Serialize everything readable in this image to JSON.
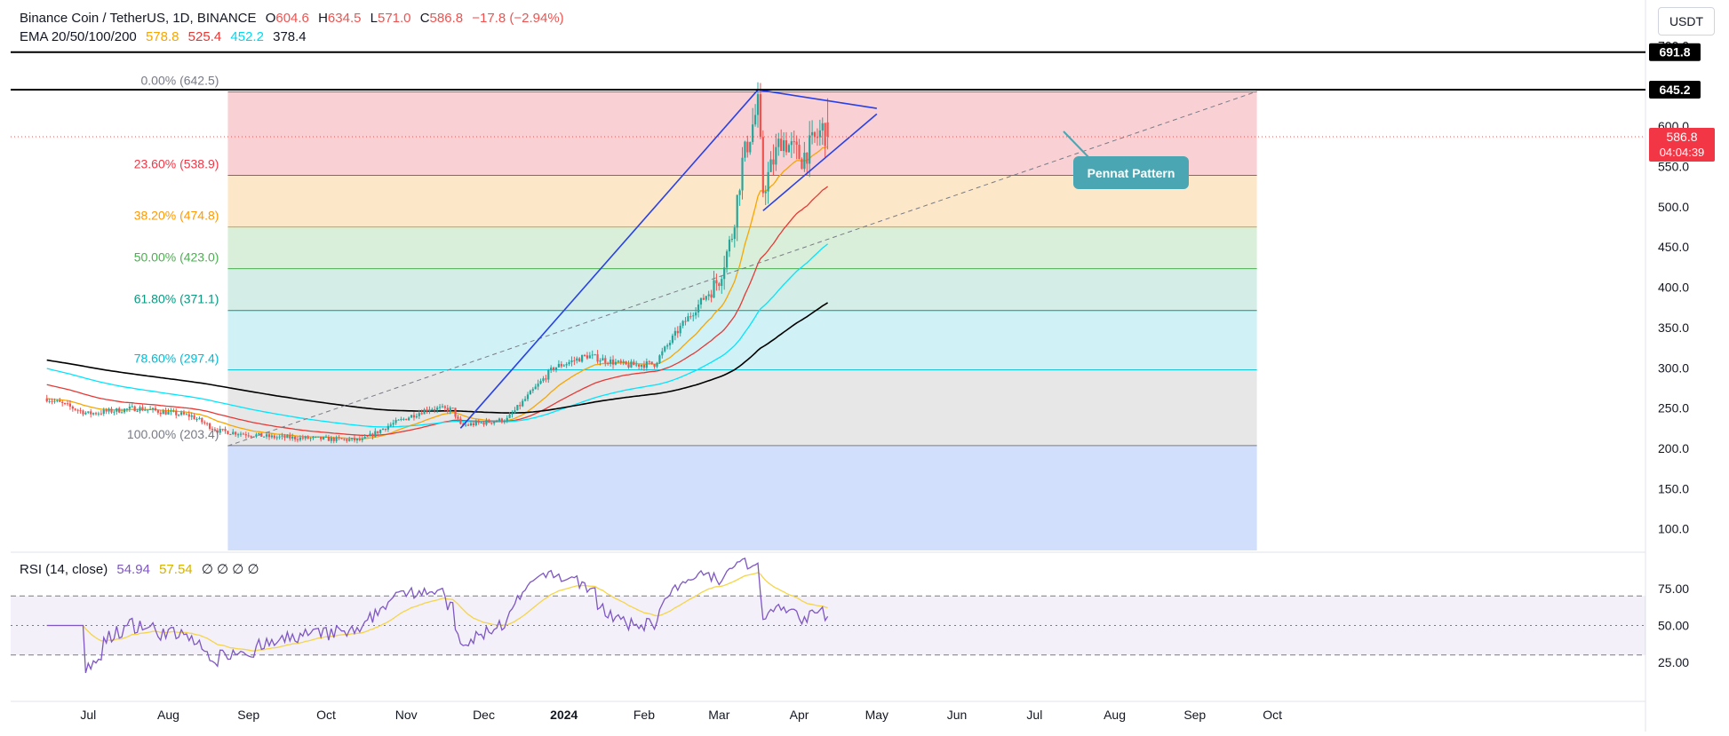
{
  "header": {
    "symbol": "Binance Coin / TetherUS, 1D, BINANCE",
    "o_label": "O",
    "o_value": "604.6",
    "h_label": "H",
    "h_value": "634.5",
    "l_label": "L",
    "l_value": "571.0",
    "c_label": "C",
    "c_value": "586.8",
    "change": "−17.8 (−2.94%)",
    "ema_label": "EMA 20/50/100/200",
    "ema_values": [
      "578.8",
      "525.4",
      "452.2",
      "378.4"
    ],
    "currency_button": "USDT"
  },
  "colors": {
    "up": "#26a69a",
    "down": "#ef5350",
    "ema20": "#f7a600",
    "ema50": "#e53935",
    "ema100": "#00e5ff",
    "ema200": "#000000",
    "rsi": "#7e57c2",
    "rsi_ma": "#f5d547",
    "trend": "#2740e8",
    "callout": "#4aa6b2"
  },
  "price_axis": {
    "ticks": [
      "700.0",
      "600.0",
      "550.0",
      "500.0",
      "450.0",
      "400.0",
      "350.0",
      "300.0",
      "250.0",
      "200.0",
      "150.0",
      "100.0"
    ]
  },
  "rsi_axis": {
    "ticks": [
      "75.00",
      "50.00",
      "25.00"
    ]
  },
  "time_axis": {
    "labels": [
      "Jul",
      "Aug",
      "Sep",
      "Oct",
      "Nov",
      "Dec",
      "2024",
      "Feb",
      "Mar",
      "Apr",
      "May",
      "Jun",
      "Jul",
      "Aug",
      "Sep",
      "Oct"
    ]
  },
  "price_badges": {
    "level1": "691.8",
    "level2": "645.2",
    "last": "586.8",
    "countdown": "04:04:39"
  },
  "fib_levels": [
    {
      "label": "0.00% (642.5)",
      "price": 642.5,
      "color": "#787b86"
    },
    {
      "label": "23.60% (538.9)",
      "price": 538.9,
      "color": "#f23645"
    },
    {
      "label": "38.20% (474.8)",
      "price": 474.8,
      "color": "#ff9800"
    },
    {
      "label": "50.00% (423.0)",
      "price": 423.0,
      "color": "#4caf50"
    },
    {
      "label": "61.80% (371.1)",
      "price": 371.1,
      "color": "#089981"
    },
    {
      "label": "78.60% (297.4)",
      "price": 297.4,
      "color": "#00bcd4"
    },
    {
      "label": "100.00% (203.4)",
      "price": 203.4,
      "color": "#787b86"
    }
  ],
  "callout": {
    "text": "Pennat Pattern"
  },
  "rsi": {
    "label": "RSI (14, close)",
    "value": "54.94",
    "ma_value": "57.54",
    "extras": "∅ ∅ ∅ ∅"
  },
  "chart_data": {
    "type": "candlestick",
    "ylim": [
      75,
      735
    ],
    "rsi_ylim": [
      10,
      92
    ],
    "horizontal_levels": [
      691.8,
      645.2
    ],
    "current_price": 586.8,
    "ohlc_anchors": [
      {
        "date": "2023-06-15",
        "close": 262
      },
      {
        "date": "2023-07-01",
        "close": 243
      },
      {
        "date": "2023-07-20",
        "close": 250
      },
      {
        "date": "2023-08-10",
        "close": 240
      },
      {
        "date": "2023-08-20",
        "close": 222
      },
      {
        "date": "2023-09-10",
        "close": 214
      },
      {
        "date": "2023-10-15",
        "close": 210
      },
      {
        "date": "2023-10-25",
        "close": 228
      },
      {
        "date": "2023-11-10",
        "close": 250
      },
      {
        "date": "2023-11-19",
        "close": 248
      },
      {
        "date": "2023-11-22",
        "close": 228
      },
      {
        "date": "2023-12-10",
        "close": 236
      },
      {
        "date": "2023-12-28",
        "close": 300
      },
      {
        "date": "2024-01-10",
        "close": 315
      },
      {
        "date": "2024-01-25",
        "close": 303
      },
      {
        "date": "2024-02-05",
        "close": 305
      },
      {
        "date": "2024-02-15",
        "close": 350
      },
      {
        "date": "2024-03-01",
        "close": 410
      },
      {
        "date": "2024-03-06",
        "close": 465
      },
      {
        "date": "2024-03-10",
        "close": 555
      },
      {
        "date": "2024-03-16",
        "close": 625
      },
      {
        "date": "2024-03-18",
        "close": 520
      },
      {
        "date": "2024-03-25",
        "close": 585
      },
      {
        "date": "2024-04-02",
        "close": 560
      },
      {
        "date": "2024-04-10",
        "close": 596
      },
      {
        "date": "2024-04-12",
        "close": 586.8
      }
    ],
    "trend_lines": [
      {
        "from": {
          "date": "2023-11-22",
          "price": 225
        },
        "to": {
          "date": "2024-03-16",
          "price": 645
        }
      },
      {
        "from": {
          "date": "2024-03-16",
          "price": 645
        },
        "to": {
          "date": "2024-05-01",
          "price": 622
        }
      },
      {
        "from": {
          "date": "2024-03-18",
          "price": 495
        },
        "to": {
          "date": "2024-05-01",
          "price": 615
        }
      }
    ],
    "dashed_trend": {
      "from": {
        "date": "2023-08-24",
        "price": 203
      },
      "to": {
        "date": "2024-09-25",
        "price": 643
      }
    },
    "fib_range": {
      "from_date": "2023-08-24",
      "to_date": "2024-09-25"
    }
  }
}
